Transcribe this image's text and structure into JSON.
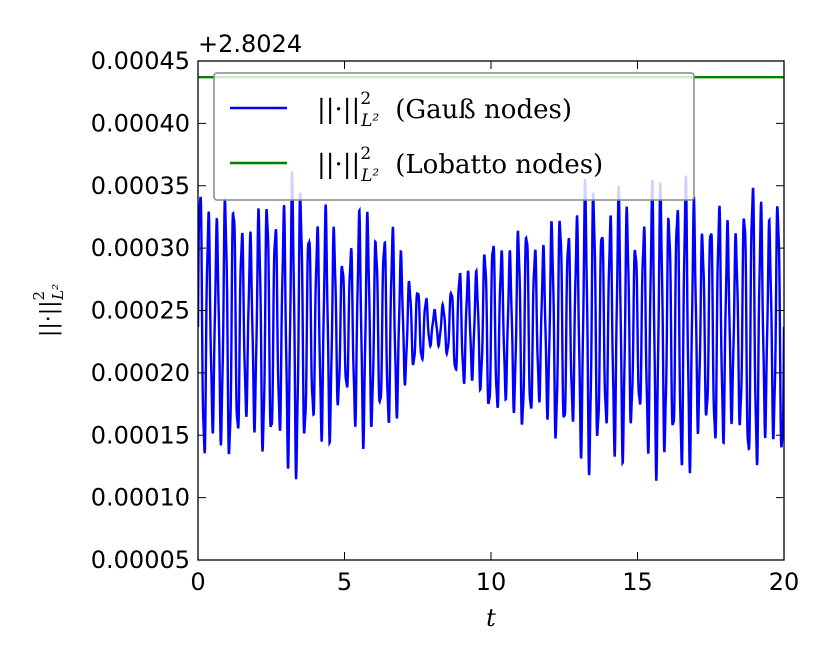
{
  "chart_data": {
    "type": "line",
    "title": "",
    "xlabel": "t",
    "ylabel_parts": {
      "norm": "||·||",
      "sup": "2",
      "sub": "L²"
    },
    "offset_text": "+2.8024",
    "xlim": [
      0,
      20
    ],
    "ylim": [
      5e-05,
      0.00045
    ],
    "x_ticks": [
      0,
      5,
      10,
      15,
      20
    ],
    "x_tick_labels": [
      "0",
      "5",
      "10",
      "15",
      "20"
    ],
    "y_ticks": [
      5e-05,
      0.0001,
      0.00015,
      0.0002,
      0.00025,
      0.0003,
      0.00035,
      0.0004,
      0.00045
    ],
    "y_tick_labels": [
      "0.00005",
      "0.00010",
      "0.00015",
      "0.00020",
      "0.00025",
      "0.00030",
      "0.00035",
      "0.00040",
      "0.00045"
    ],
    "grid": false,
    "legend_position": "top",
    "series": [
      {
        "name_parts": {
          "norm": "||·||",
          "sup": "2",
          "sub": "L²",
          "suffix": "(Gauß nodes)"
        },
        "color": "#0000ff",
        "kind": "oscillation",
        "mean": 0.000237,
        "min_amplitude": 1.2e-05,
        "max_amplitude": 0.000125,
        "samples": 2000,
        "envelope_t": [
          0,
          1,
          2,
          3,
          4,
          5,
          6,
          7,
          7.5,
          8,
          9,
          10,
          11,
          12,
          13,
          14,
          15,
          16,
          17,
          18,
          19,
          20
        ],
        "envelope_amp": [
          0.000115,
          0.000105,
          9e-05,
          0.00012,
          0.0001,
          7e-05,
          0.0001,
          6e-05,
          3.5e-05,
          1.2e-05,
          4.5e-05,
          7e-05,
          8e-05,
          8e-05,
          0.00011,
          0.00011,
          9e-05,
          0.000125,
          0.000105,
          9e-05,
          0.000115,
          0.000105
        ],
        "frequency_cycles_per_unit": 3.5
      },
      {
        "name_parts": {
          "norm": "||·||",
          "sup": "2",
          "sub": "L²",
          "suffix": "(Lobatto nodes)"
        },
        "color": "#008000",
        "kind": "constant",
        "value": 0.000437
      }
    ]
  }
}
